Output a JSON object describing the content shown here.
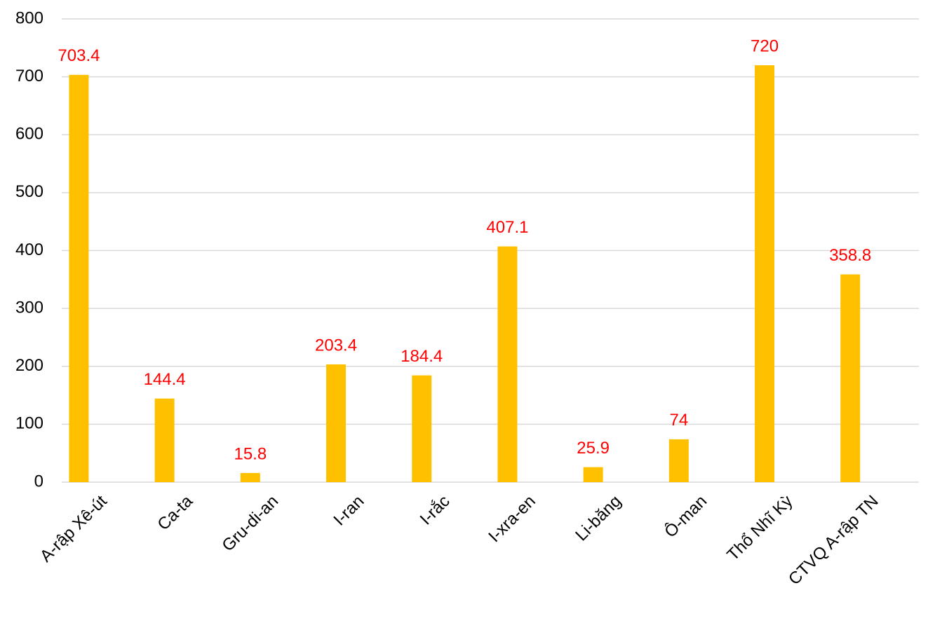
{
  "chart_data": {
    "type": "bar",
    "categories": [
      "A-rập Xê-út",
      "Ca-ta",
      "Gru-di-an",
      "I-ran",
      "I-rắc",
      "I-xra-en",
      "Li-băng",
      "Ô-man",
      "Thổ Nhĩ Kỳ",
      "CTVQ A-rập TN"
    ],
    "values": [
      703.4,
      144.4,
      15.8,
      203.4,
      184.4,
      407.1,
      25.9,
      74,
      720,
      358.8
    ],
    "color": "#ffc000",
    "label_color": "#ff0000",
    "ylim": [
      0,
      800
    ],
    "yticks": [
      0,
      100,
      200,
      300,
      400,
      500,
      600,
      700,
      800
    ],
    "grid": true
  }
}
